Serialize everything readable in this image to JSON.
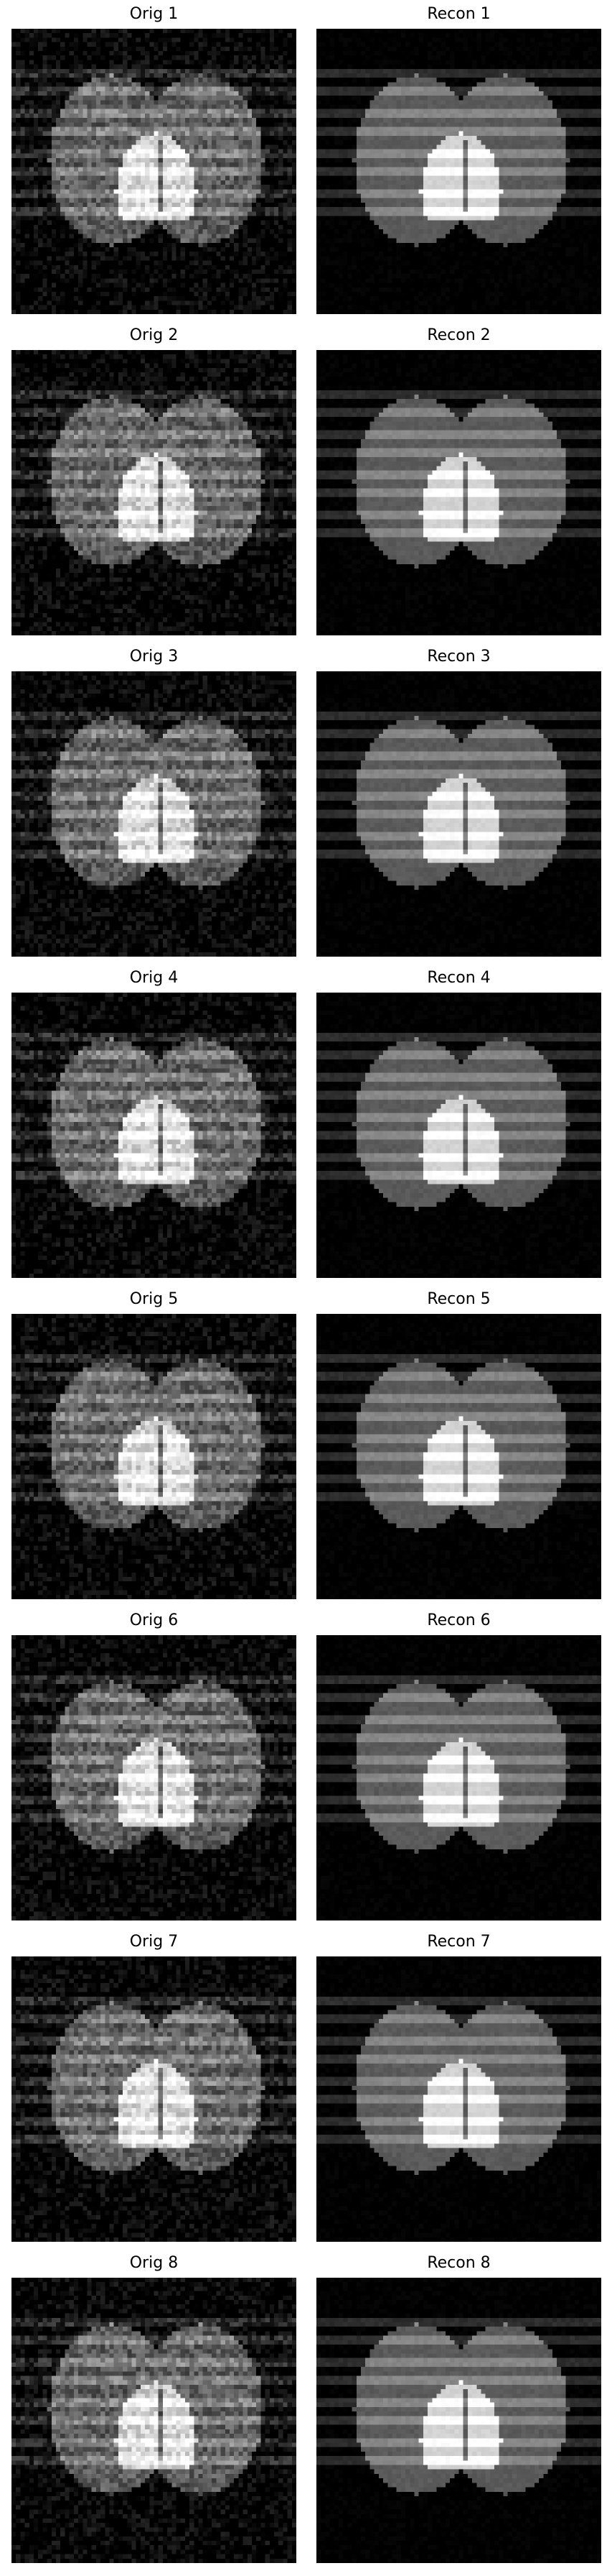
{
  "panels": [
    {
      "title": "Orig 1",
      "kind": "orig"
    },
    {
      "title": "Recon 1",
      "kind": "recon"
    },
    {
      "title": "Orig 2",
      "kind": "orig"
    },
    {
      "title": "Recon 2",
      "kind": "recon"
    },
    {
      "title": "Orig 3",
      "kind": "orig"
    },
    {
      "title": "Recon 3",
      "kind": "recon"
    },
    {
      "title": "Orig 4",
      "kind": "orig"
    },
    {
      "title": "Recon 4",
      "kind": "recon"
    },
    {
      "title": "Orig 5",
      "kind": "orig"
    },
    {
      "title": "Recon 5",
      "kind": "recon"
    },
    {
      "title": "Orig 6",
      "kind": "orig"
    },
    {
      "title": "Recon 6",
      "kind": "recon"
    },
    {
      "title": "Orig 7",
      "kind": "orig"
    },
    {
      "title": "Recon 7",
      "kind": "recon"
    },
    {
      "title": "Orig 8",
      "kind": "orig"
    },
    {
      "title": "Recon 8",
      "kind": "recon"
    }
  ],
  "colors": {
    "background": "#000000",
    "ellipse": "#5a5a5a",
    "bright": "#d8d8d8"
  }
}
